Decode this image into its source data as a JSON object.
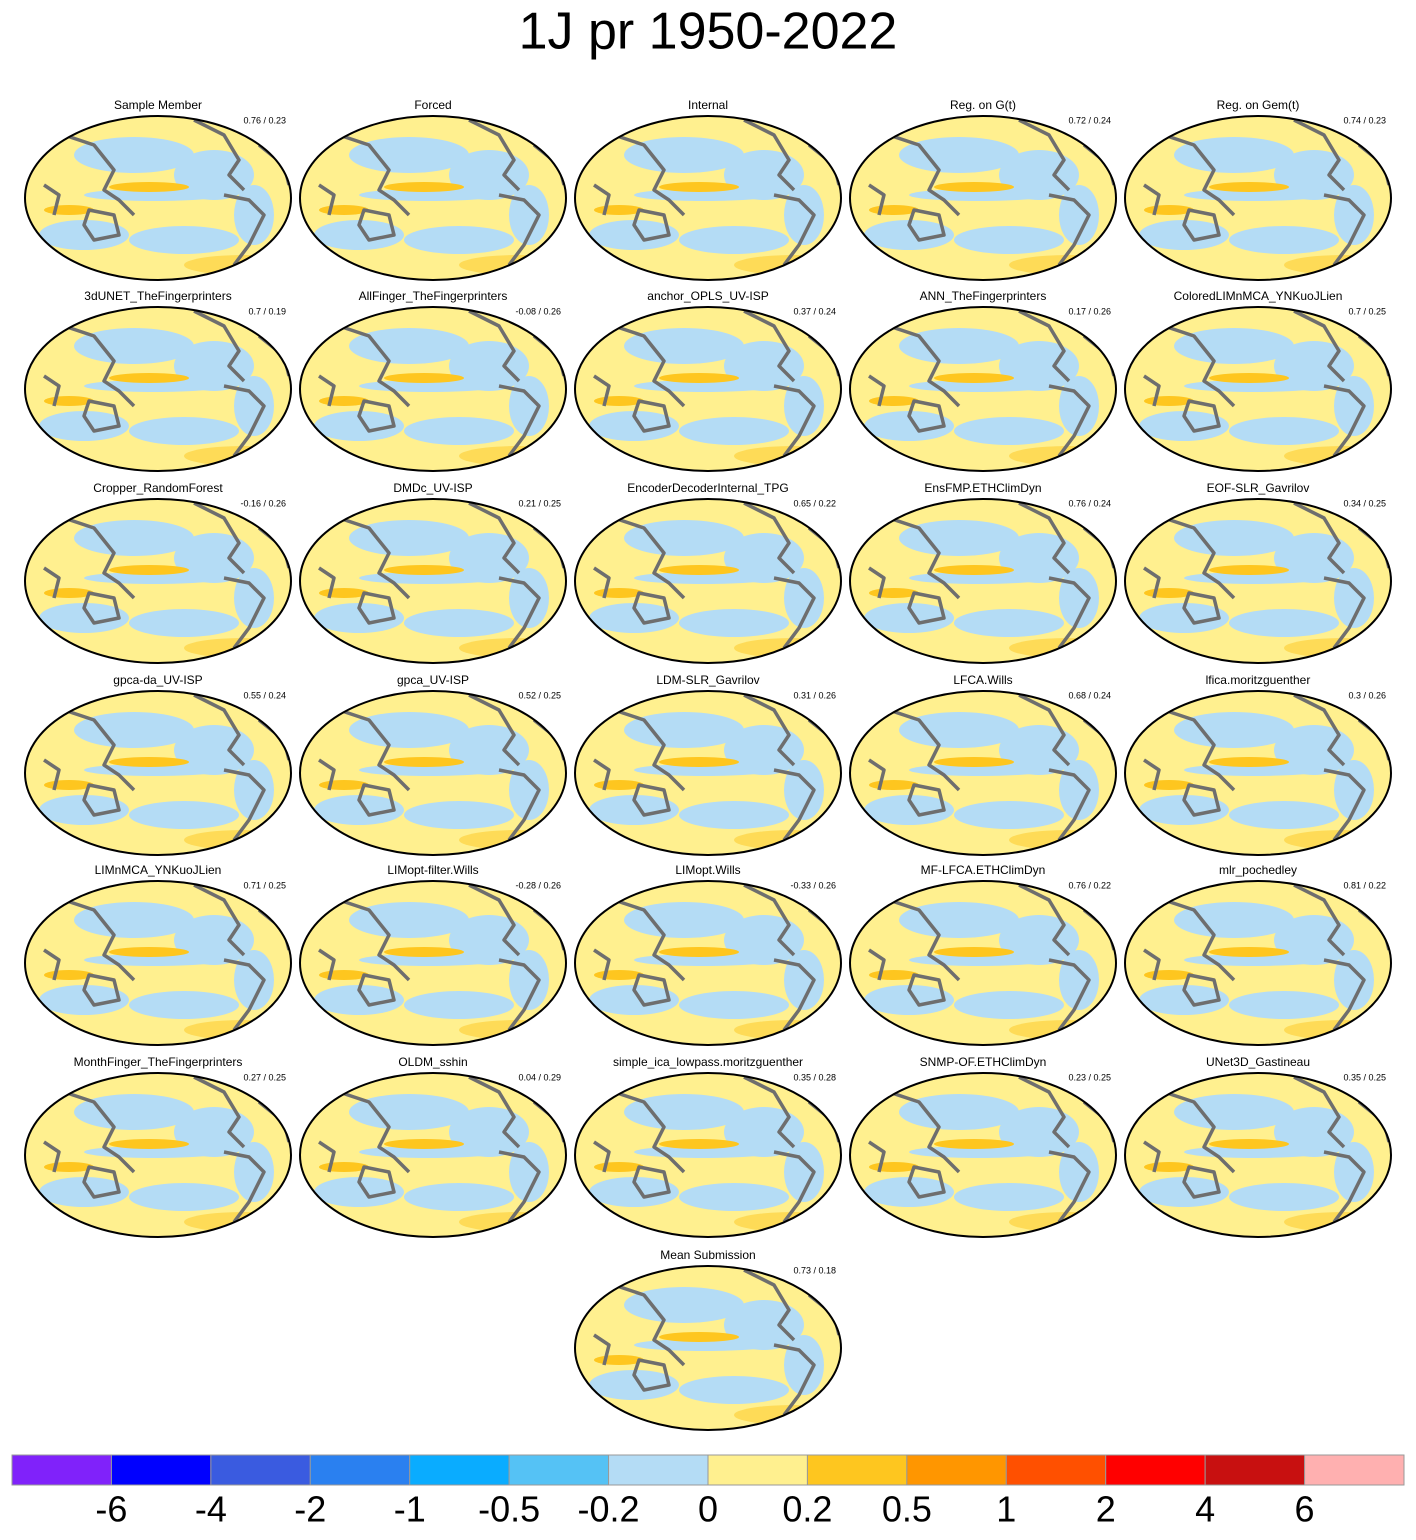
{
  "title": "1J pr 1950-2022",
  "panels": [
    {
      "title": "Sample Member",
      "stats": "0.76 / 0.23"
    },
    {
      "title": "Forced"
    },
    {
      "title": "Internal"
    },
    {
      "title": "Reg. on G(t)",
      "stats": "0.72 / 0.24"
    },
    {
      "title": "Reg. on Gem(t)",
      "stats": "0.74 / 0.23"
    },
    {
      "title": "3dUNET_TheFingerprinters",
      "stats": "0.7 / 0.19"
    },
    {
      "title": "AllFinger_TheFingerprinters",
      "stats": "-0.08 / 0.26"
    },
    {
      "title": "anchor_OPLS_UV-ISP",
      "stats": "0.37 / 0.24"
    },
    {
      "title": "ANN_TheFingerprinters",
      "stats": "0.17 / 0.26"
    },
    {
      "title": "ColoredLIMnMCA_YNKuoJLien",
      "stats": "0.7 / 0.25"
    },
    {
      "title": "Cropper_RandomForest",
      "stats": "-0.16 / 0.26"
    },
    {
      "title": "DMDc_UV-ISP",
      "stats": "0.21 / 0.25"
    },
    {
      "title": "EncoderDecoderInternal_TPG",
      "stats": "0.65 / 0.22"
    },
    {
      "title": "EnsFMP.ETHClimDyn",
      "stats": "0.76 / 0.24"
    },
    {
      "title": "EOF-SLR_Gavrilov",
      "stats": "0.34 / 0.25"
    },
    {
      "title": "gpca-da_UV-ISP",
      "stats": "0.55 / 0.24"
    },
    {
      "title": "gpca_UV-ISP",
      "stats": "0.52 / 0.25"
    },
    {
      "title": "LDM-SLR_Gavrilov",
      "stats": "0.31 / 0.26"
    },
    {
      "title": "LFCA.Wills",
      "stats": "0.68 / 0.24"
    },
    {
      "title": "lfica.moritzguenther",
      "stats": "0.3 / 0.26"
    },
    {
      "title": "LIMnMCA_YNKuoJLien",
      "stats": "0.71 / 0.25"
    },
    {
      "title": "LIMopt-filter.Wills",
      "stats": "-0.28 / 0.26"
    },
    {
      "title": "LIMopt.Wills",
      "stats": "-0.33 / 0.26"
    },
    {
      "title": "MF-LFCA.ETHClimDyn",
      "stats": "0.76 / 0.22"
    },
    {
      "title": "mlr_pochedley",
      "stats": "0.81 / 0.22"
    },
    {
      "title": "MonthFinger_TheFingerprinters",
      "stats": "0.27 / 0.25"
    },
    {
      "title": "OLDM_sshin",
      "stats": "0.04 / 0.29"
    },
    {
      "title": "simple_ica_lowpass.moritzguenther",
      "stats": "0.35 / 0.28"
    },
    {
      "title": "SNMP-OF.ETHClimDyn",
      "stats": "0.23 / 0.25"
    },
    {
      "title": "UNet3D_Gastineau",
      "stats": "0.35 / 0.25"
    },
    {
      "title": "Mean Submission",
      "stats": "0.73 / 0.18"
    }
  ],
  "colorbar": {
    "colors": [
      "#8022fa",
      "#0000ff",
      "#3a5be0",
      "#2a80f0",
      "#0aacff",
      "#55c2f5",
      "#b4dcf5",
      "#fff08f",
      "#fec61f",
      "#ff9600",
      "#ff5000",
      "#ff0000",
      "#c81010",
      "#ffb0b0"
    ],
    "ticks": [
      -6,
      -4,
      -2,
      -1,
      -0.5,
      -0.2,
      0,
      0.2,
      0.5,
      1,
      2,
      4,
      6
    ]
  }
}
